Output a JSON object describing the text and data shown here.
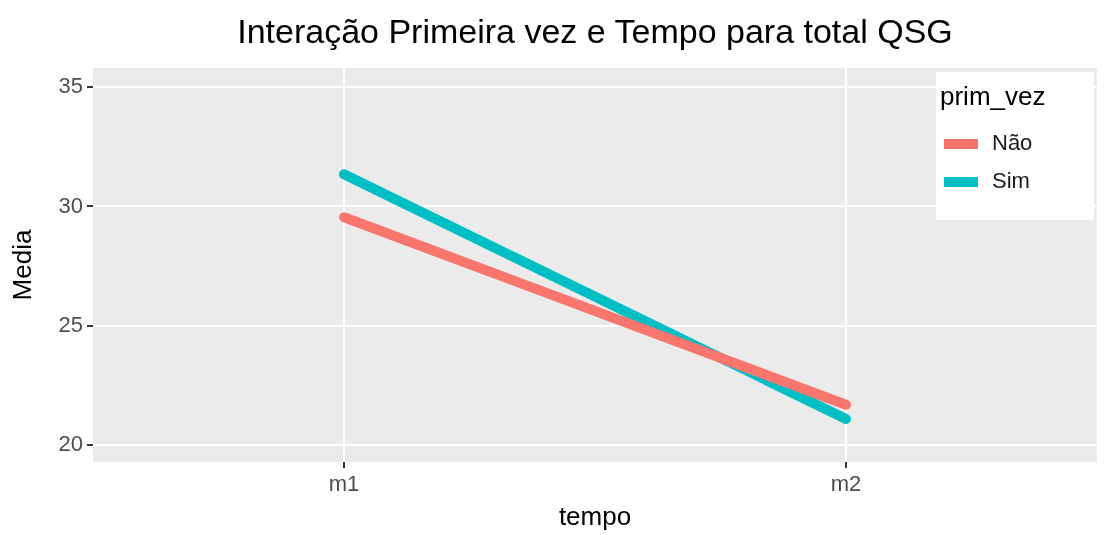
{
  "chart_data": {
    "type": "line",
    "title": "Interação Primeira vez e Tempo para total QSG",
    "xlabel": "tempo",
    "ylabel": "Media",
    "legend_title": "prim_vez",
    "categories": [
      "m1",
      "m2"
    ],
    "series": [
      {
        "name": "Não",
        "color": "#f8766d",
        "values": [
          29.55,
          21.7
        ]
      },
      {
        "name": "Sim",
        "color": "#00bfc4",
        "values": [
          31.35,
          21.1
        ]
      }
    ],
    "ylim": [
      19.3,
      35.8
    ],
    "yticks": [
      20,
      25,
      30,
      35
    ],
    "grid": true,
    "legend": "top right",
    "marker": "none",
    "line_style": "solid"
  }
}
